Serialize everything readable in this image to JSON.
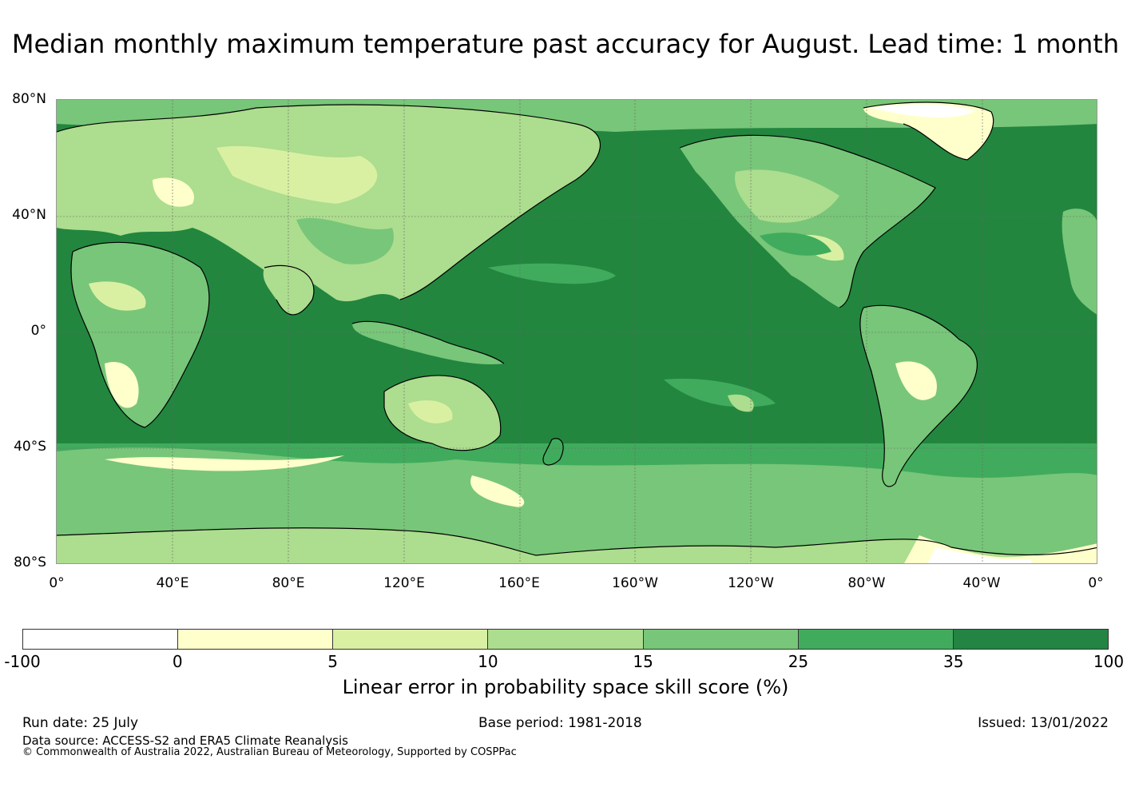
{
  "title": "Median monthly maximum temperature past accuracy for August. Lead time: 1 month",
  "map": {
    "lat_labels": [
      "80°N",
      "40°N",
      "0°",
      "40°S",
      "80°S"
    ],
    "lon_labels": [
      "0°",
      "40°E",
      "80°E",
      "120°E",
      "160°E",
      "160°W",
      "120°W",
      "80°W",
      "40°W",
      "0°"
    ],
    "ocean_color": "#22863f",
    "land_colors": [
      "#ffffcc",
      "#d9f0a3",
      "#addd8e",
      "#78c679",
      "#41ab5d",
      "#238443"
    ]
  },
  "colorbar": {
    "ticks": [
      "-100",
      "0",
      "5",
      "10",
      "15",
      "25",
      "35",
      "100"
    ],
    "colors": [
      "#ffffff",
      "#ffffcc",
      "#d9f0a3",
      "#addd8e",
      "#78c679",
      "#41ab5d",
      "#238443"
    ],
    "label": "Linear error in probability space skill score (%)"
  },
  "footer": {
    "run_date": "Run date: 25 July",
    "base_period": "Base period: 1981-2018",
    "issued": "Issued: 13/01/2022",
    "data_source": "Data source: ACCESS-S2 and ERA5 Climate Reanalysis",
    "copyright": "© Commonwealth of Australia 2022, Australian Bureau of Meteorology, Supported by COSPPac"
  }
}
